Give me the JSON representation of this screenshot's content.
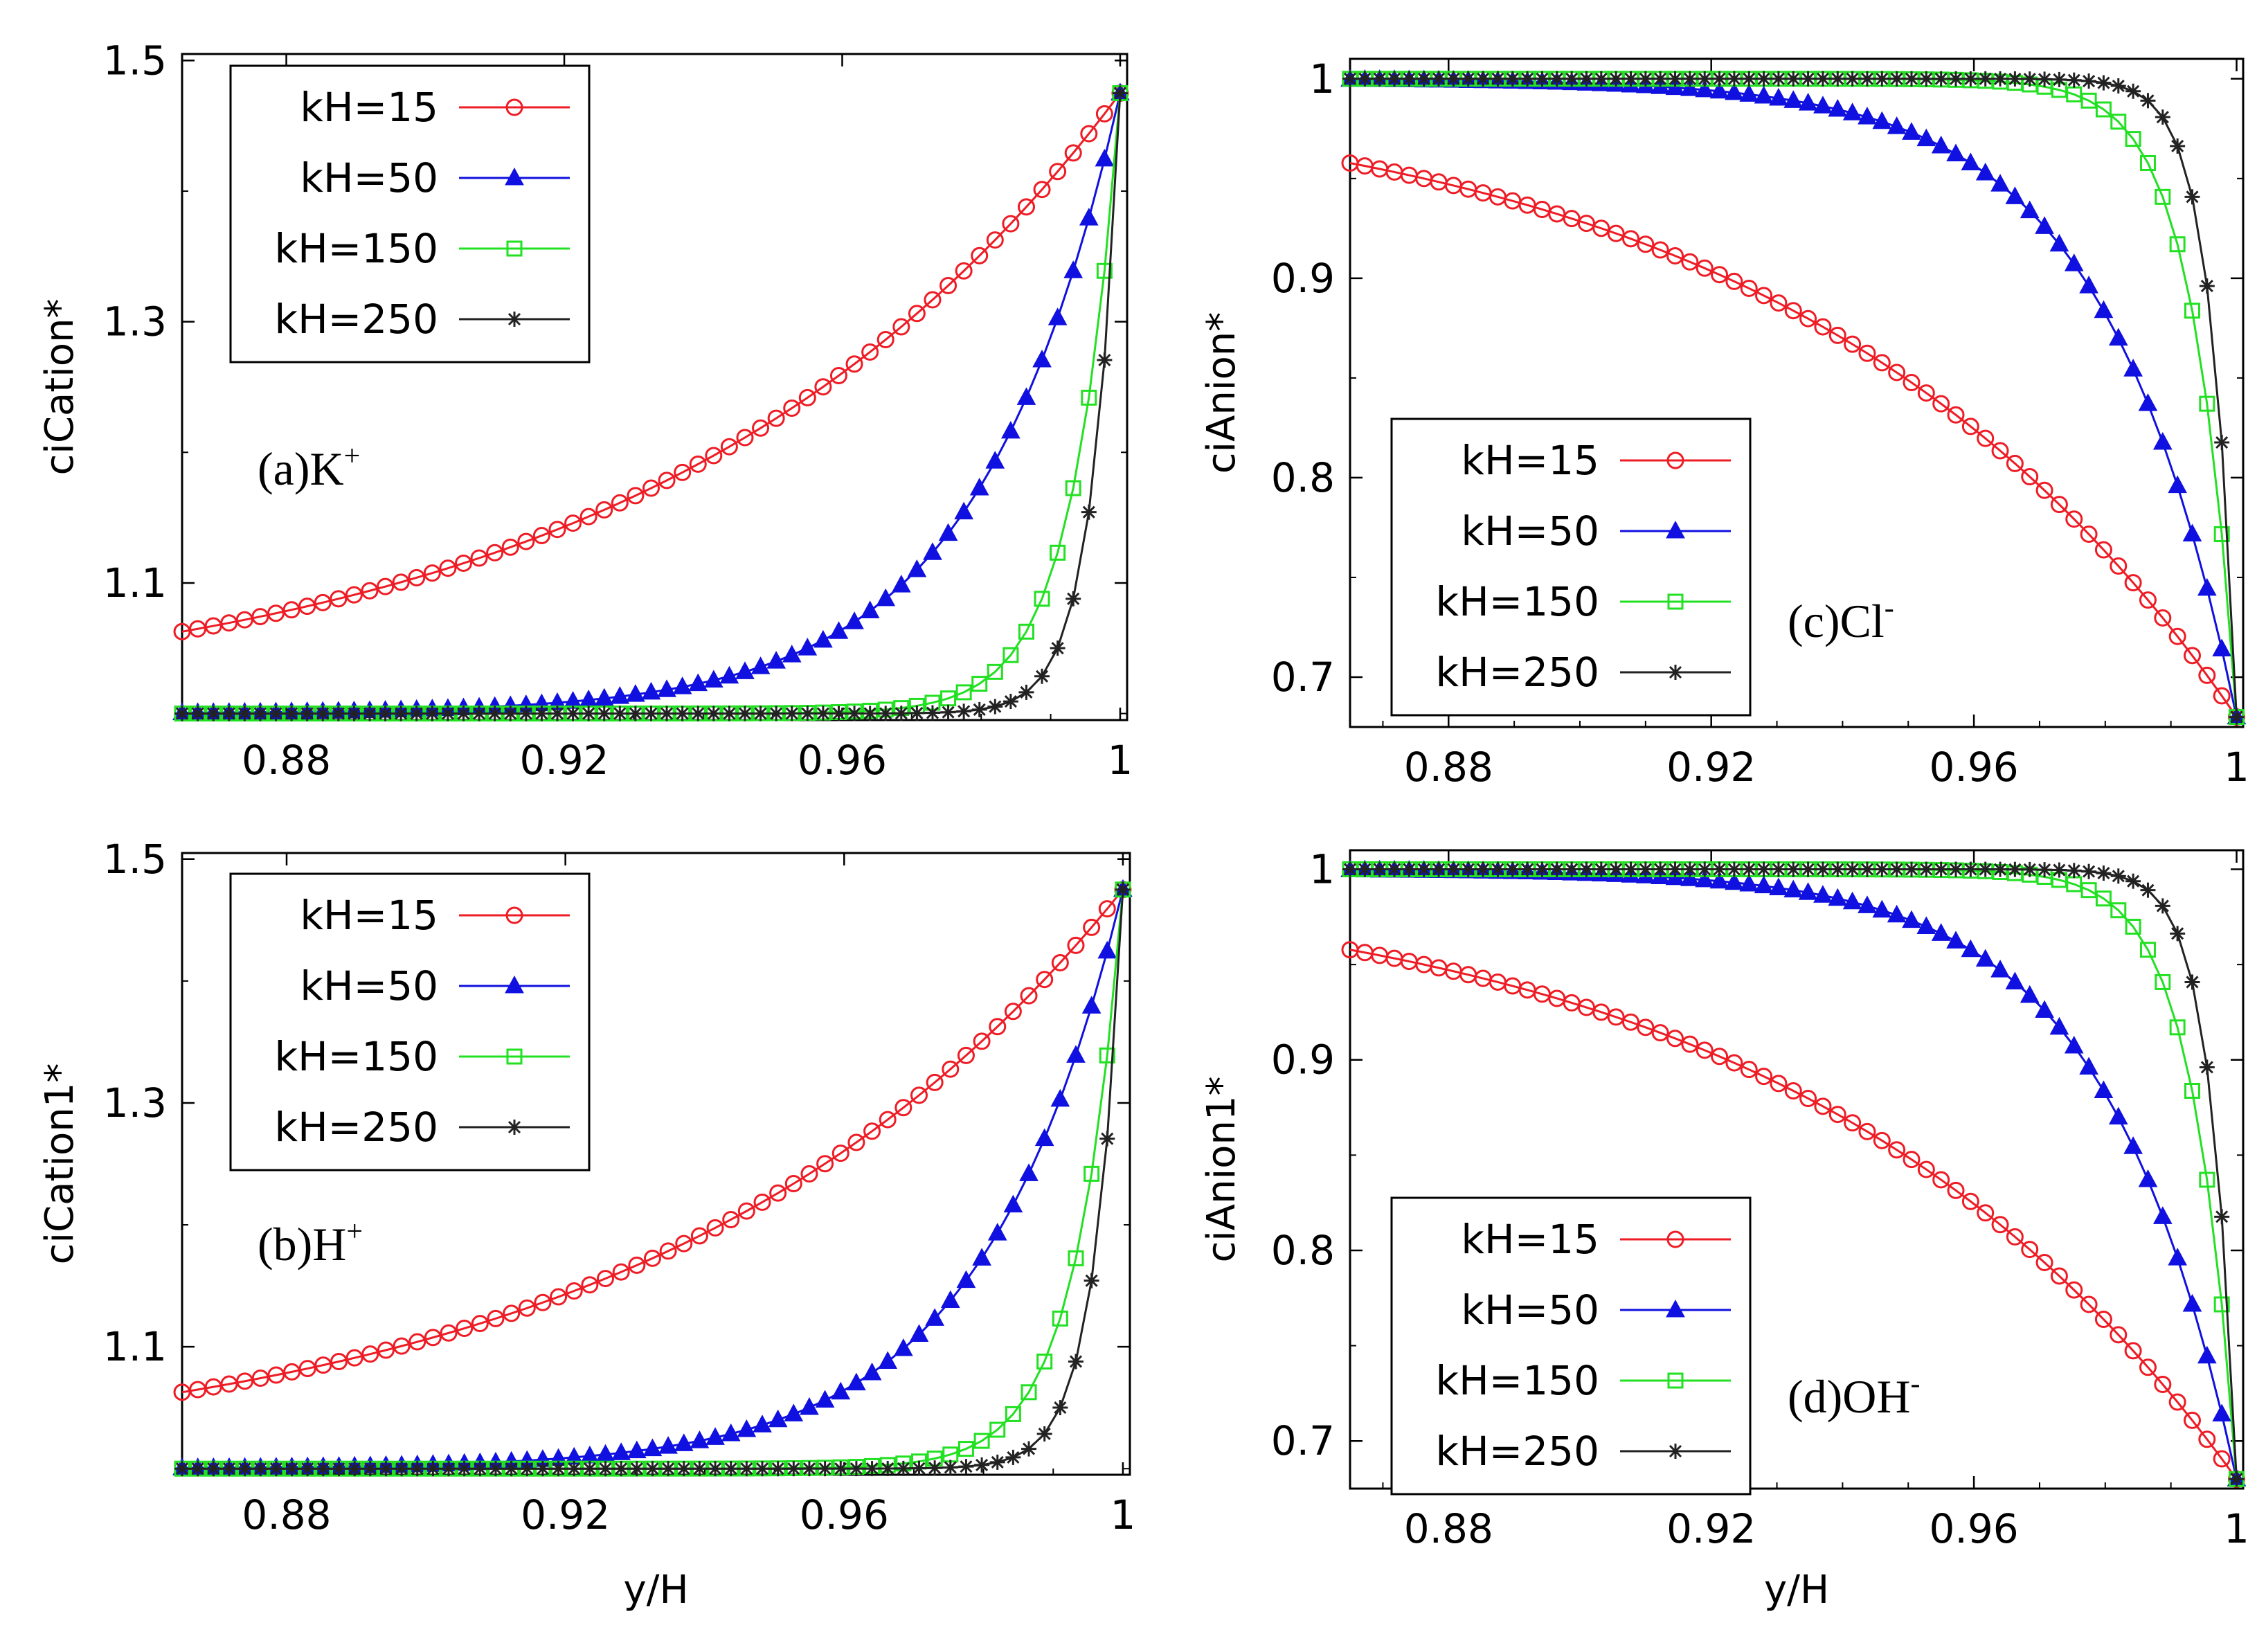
{
  "chart_data": [
    {
      "type": "line",
      "id": "a",
      "annotation": "(a)K",
      "annotation_sup": "+",
      "xlabel": "",
      "ylabel": "ciCation*",
      "xlim": [
        0.865,
        1.001
      ],
      "ylim": [
        0.995,
        1.505
      ],
      "xticks": [
        0.88,
        0.92,
        0.96,
        1
      ],
      "xtick_labels": [
        "0.88",
        "0.92",
        "0.96",
        "1"
      ],
      "yticks": [
        1.1,
        1.3,
        1.5
      ],
      "ytick_labels": [
        "1.1",
        "1.3",
        "1.5"
      ],
      "legend_position": "top-left",
      "curve_kind": "cation",
      "start": 1.0,
      "end": 1.475
    },
    {
      "type": "line",
      "id": "c",
      "annotation": "(c)Cl",
      "annotation_sup": "-",
      "xlabel": "",
      "ylabel": "ciAnion*",
      "xlim": [
        0.865,
        1.001
      ],
      "ylim": [
        0.675,
        1.01
      ],
      "xticks": [
        0.88,
        0.92,
        0.96,
        1
      ],
      "xtick_labels": [
        "0.88",
        "0.92",
        "0.96",
        "1"
      ],
      "yticks": [
        0.7,
        0.8,
        0.9,
        1
      ],
      "ytick_labels": [
        "0.7",
        "0.8",
        "0.9",
        "1"
      ],
      "legend_position": "bottom-left",
      "curve_kind": "anion",
      "start": 1.0,
      "end": 0.68
    },
    {
      "type": "line",
      "id": "b",
      "annotation": "(b)H",
      "annotation_sup": "+",
      "xlabel": "y/H",
      "ylabel": "ciCation1*",
      "xlim": [
        0.865,
        1.001
      ],
      "ylim": [
        0.995,
        1.505
      ],
      "xticks": [
        0.88,
        0.92,
        0.96,
        1
      ],
      "xtick_labels": [
        "0.88",
        "0.92",
        "0.96",
        "1"
      ],
      "yticks": [
        1.1,
        1.3,
        1.5
      ],
      "ytick_labels": [
        "1.1",
        "1.3",
        "1.5"
      ],
      "legend_position": "top-left",
      "curve_kind": "cation",
      "start": 1.0,
      "end": 1.475
    },
    {
      "type": "line",
      "id": "d",
      "annotation": "(d)OH",
      "annotation_sup": "-",
      "xlabel": "y/H",
      "ylabel": "ciAnion1*",
      "xlim": [
        0.865,
        1.001
      ],
      "ylim": [
        0.675,
        1.01
      ],
      "xticks": [
        0.88,
        0.92,
        0.96,
        1
      ],
      "xtick_labels": [
        "0.88",
        "0.92",
        "0.96",
        "1"
      ],
      "yticks": [
        0.7,
        0.8,
        0.9,
        1
      ],
      "ytick_labels": [
        "0.7",
        "0.8",
        "0.9",
        "1"
      ],
      "legend_position": "bottom-left",
      "curve_kind": "anion",
      "start": 1.0,
      "end": 0.68
    }
  ],
  "series": [
    {
      "name": "kH=15",
      "color": "#ee1c25",
      "marker": "circle",
      "k": 15
    },
    {
      "name": "kH=50",
      "color": "#1010e0",
      "marker": "triangle",
      "k": 50
    },
    {
      "name": "kH=150",
      "color": "#22e022",
      "marker": "square",
      "k": 150
    },
    {
      "name": "kH=250",
      "color": "#222222",
      "marker": "star",
      "k": 250
    }
  ],
  "x_samples": {
    "start": 0.865,
    "end": 1.0,
    "count": 61
  }
}
